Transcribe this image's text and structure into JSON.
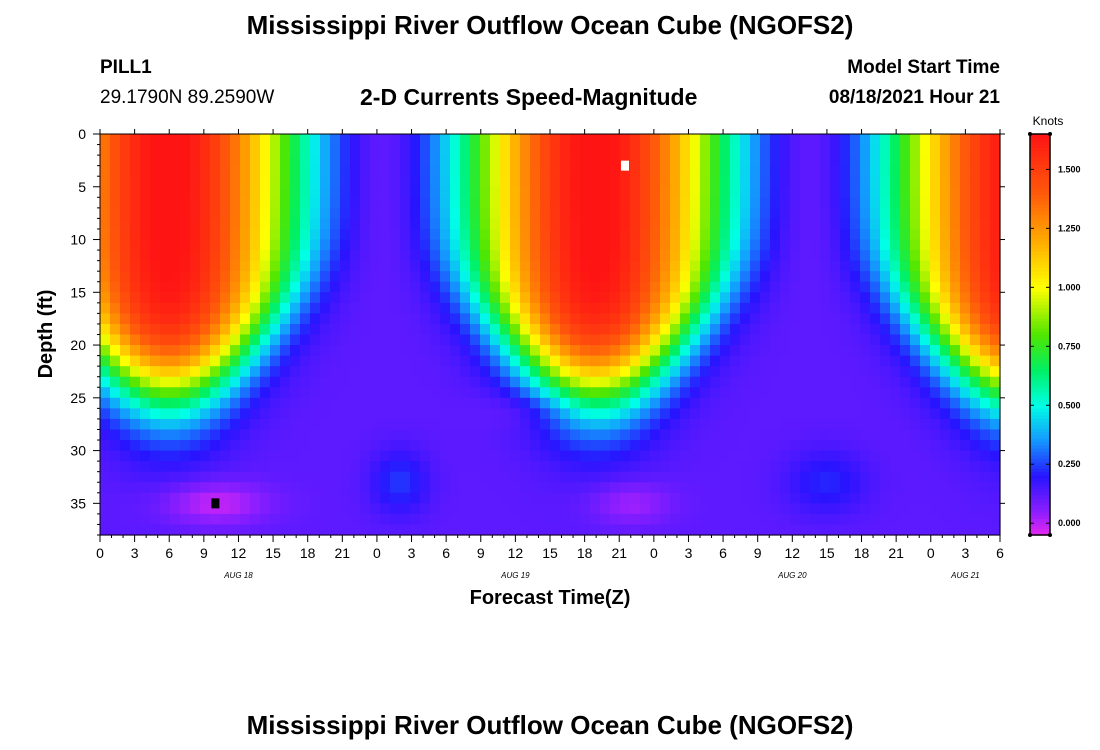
{
  "header": {
    "title": "Mississippi River Outflow Ocean Cube (NGOFS2)",
    "station": "PILL1",
    "coords": "29.1790N  89.2590W",
    "subtitle": "2-D Currents Speed-Magnitude",
    "model_label": "Model Start Time",
    "model_time": "08/18/2021 Hour 21"
  },
  "footer": {
    "title": "Mississippi River Outflow Ocean Cube (NGOFS2)"
  },
  "chart_data": {
    "type": "heatmap",
    "title": "2-D Currents Speed-Magnitude",
    "xlabel": "Forecast Time(Z)",
    "ylabel": "Depth (ft)",
    "x_ticks": [
      "0",
      "3",
      "6",
      "9",
      "12",
      "15",
      "18",
      "21",
      "0",
      "3",
      "6",
      "9",
      "12",
      "15",
      "18",
      "21",
      "0",
      "3",
      "6",
      "9",
      "12",
      "15",
      "18",
      "21",
      "0",
      "3",
      "6"
    ],
    "x_range_hours": [
      0,
      78
    ],
    "date_labels": [
      {
        "text": "AUG 18",
        "hour": 12
      },
      {
        "text": "AUG 19",
        "hour": 36
      },
      {
        "text": "AUG 20",
        "hour": 60
      },
      {
        "text": "AUG 21",
        "hour": 75
      }
    ],
    "y_ticks": [
      "0",
      "5",
      "10",
      "15",
      "20",
      "25",
      "30",
      "35"
    ],
    "y_range_ft": [
      0,
      38
    ],
    "colorbar": {
      "label": "Knots",
      "range": [
        -0.05,
        1.65
      ],
      "ticks": [
        "0.000",
        "0.250",
        "0.500",
        "0.750",
        "1.000",
        "1.250",
        "1.500"
      ],
      "tick_values": [
        0,
        0.25,
        0.5,
        0.75,
        1.0,
        1.25,
        1.5
      ]
    },
    "surface_speed_peaks": [
      {
        "hour": 6,
        "depth_ft": 3,
        "knots": 1.5
      },
      {
        "hour": 45,
        "depth_ft": 3,
        "knots": 1.62
      },
      {
        "hour": 78,
        "depth_ft": 3,
        "knots": 1.55
      }
    ],
    "markers": [
      {
        "type": "max",
        "color": "#ffffff",
        "hour": 45.5,
        "depth_ft": 3
      },
      {
        "type": "min",
        "color": "#000000",
        "hour": 10,
        "depth_ft": 35
      }
    ]
  }
}
